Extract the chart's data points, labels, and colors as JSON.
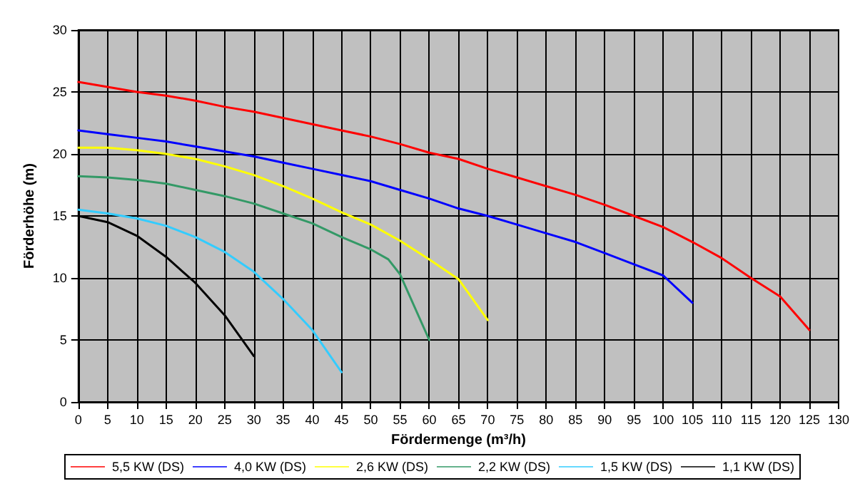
{
  "chart_data": {
    "type": "line",
    "xlabel": "Fördermenge (m³/h)",
    "ylabel": "Förderhöhe (m)",
    "xlim": [
      0,
      130
    ],
    "xticks": [
      0,
      5,
      10,
      15,
      20,
      25,
      30,
      35,
      40,
      45,
      50,
      55,
      60,
      65,
      70,
      75,
      80,
      85,
      90,
      95,
      100,
      105,
      110,
      115,
      120,
      125,
      130
    ],
    "ylim": [
      0,
      30
    ],
    "yticks": [
      0,
      5,
      10,
      15,
      20,
      25,
      30
    ],
    "grid": true,
    "legend": "bottom",
    "marker": "none",
    "line_style": "solid",
    "series": [
      {
        "name": "5,5 KW (DS)",
        "color": "#ff0000",
        "x": [
          0,
          5,
          10,
          15,
          20,
          25,
          30,
          35,
          40,
          45,
          50,
          55,
          60,
          65,
          70,
          75,
          80,
          85,
          90,
          95,
          100,
          105,
          110,
          115,
          120,
          125
        ],
        "values": [
          25.8,
          25.4,
          25.0,
          24.7,
          24.3,
          23.8,
          23.4,
          22.9,
          22.4,
          21.9,
          21.4,
          20.8,
          20.1,
          19.6,
          18.8,
          18.1,
          17.4,
          16.7,
          15.9,
          15.0,
          14.1,
          12.9,
          11.6,
          10.0,
          8.5,
          5.8
        ]
      },
      {
        "name": "4,0 KW (DS)",
        "color": "#0000ff",
        "x": [
          0,
          5,
          10,
          15,
          20,
          25,
          30,
          35,
          40,
          45,
          50,
          55,
          60,
          65,
          70,
          75,
          80,
          85,
          90,
          95,
          100,
          105
        ],
        "values": [
          21.9,
          21.6,
          21.3,
          21.0,
          20.6,
          20.2,
          19.8,
          19.3,
          18.8,
          18.3,
          17.8,
          17.1,
          16.4,
          15.6,
          15.0,
          14.3,
          13.6,
          12.9,
          12.0,
          11.1,
          10.2,
          8.0
        ]
      },
      {
        "name": "2,6 KW (DS)",
        "color": "#ffff00",
        "x": [
          0,
          5,
          10,
          15,
          20,
          25,
          30,
          35,
          40,
          45,
          50,
          55,
          60,
          65,
          70
        ],
        "values": [
          20.5,
          20.5,
          20.3,
          20.0,
          19.6,
          19.0,
          18.3,
          17.4,
          16.4,
          15.3,
          14.3,
          13.0,
          11.5,
          9.9,
          6.6
        ]
      },
      {
        "name": "2,2 KW (DS)",
        "color": "#339966",
        "x": [
          0,
          5,
          10,
          15,
          20,
          25,
          30,
          35,
          40,
          45,
          50,
          53,
          55,
          60
        ],
        "values": [
          18.2,
          18.1,
          17.9,
          17.6,
          17.1,
          16.6,
          16.0,
          15.2,
          14.4,
          13.3,
          12.3,
          11.5,
          10.3,
          5.0
        ]
      },
      {
        "name": "1,5 KW (DS)",
        "color": "#33ccff",
        "x": [
          0,
          5,
          10,
          15,
          20,
          25,
          30,
          35,
          40,
          45
        ],
        "values": [
          15.5,
          15.2,
          14.8,
          14.2,
          13.3,
          12.1,
          10.5,
          8.3,
          5.8,
          2.4
        ]
      },
      {
        "name": "1,1 KW (DS)",
        "color": "#000000",
        "x": [
          0,
          5,
          10,
          15,
          20,
          25,
          30
        ],
        "values": [
          15.0,
          14.5,
          13.4,
          11.7,
          9.6,
          7.0,
          3.7
        ]
      }
    ]
  }
}
